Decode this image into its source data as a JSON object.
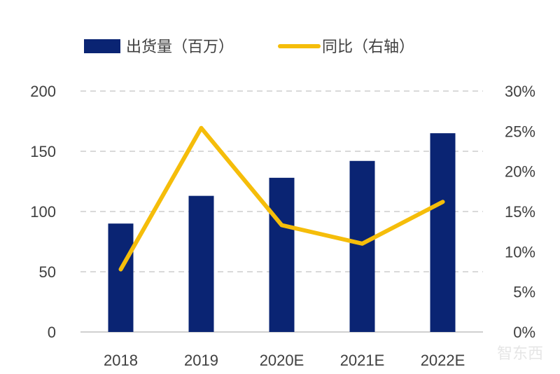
{
  "chart_data": {
    "type": "bar+line",
    "categories": [
      "2018",
      "2019",
      "2020E",
      "2021E",
      "2022E"
    ],
    "series": [
      {
        "name": "出货量（百万）",
        "type": "bar",
        "axis": "left",
        "color": "#0a2473",
        "values": [
          90,
          113,
          128,
          142,
          165
        ]
      },
      {
        "name": "同比（右轴）",
        "type": "line",
        "axis": "right",
        "color": "#f5bd0a",
        "values": [
          7.8,
          25.4,
          13.3,
          11.0,
          16.2
        ]
      }
    ],
    "y_left": {
      "range": [
        0,
        200
      ],
      "ticks": [
        "0",
        "50",
        "100",
        "150",
        "200"
      ]
    },
    "y_right": {
      "range": [
        0,
        30
      ],
      "ticks": [
        "0%",
        "5%",
        "10%",
        "15%",
        "20%",
        "25%",
        "30%"
      ]
    },
    "grid": "horizontal dashed",
    "legend_position": "top"
  },
  "watermark": "智东西"
}
